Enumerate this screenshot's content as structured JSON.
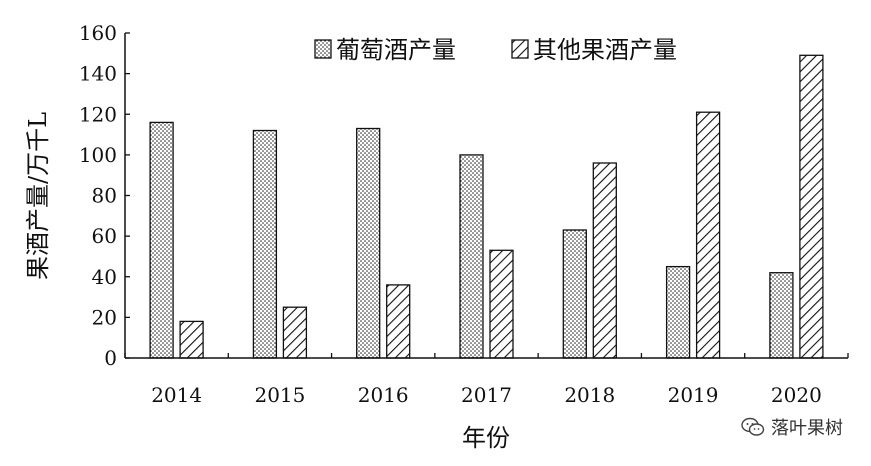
{
  "chart_data": {
    "type": "bar",
    "categories": [
      "2014",
      "2015",
      "2016",
      "2017",
      "2018",
      "2019",
      "2020"
    ],
    "series": [
      {
        "name": "葡萄酒产量",
        "pattern": "dots",
        "values": [
          116,
          112,
          113,
          100,
          63,
          45,
          42
        ]
      },
      {
        "name": "其他果酒产量",
        "pattern": "diagonal-hatch",
        "values": [
          18,
          25,
          36,
          53,
          96,
          121,
          149
        ]
      }
    ],
    "title": "",
    "xlabel": "年份",
    "ylabel": "果酒产量/万千L",
    "ylim": [
      0,
      160
    ],
    "yticks": [
      0,
      20,
      40,
      60,
      80,
      100,
      120,
      140,
      160
    ],
    "grid": false,
    "legend_position": "top-center",
    "colors": {
      "bar_outline": "#111111",
      "fill_background": "#ffffff",
      "pattern_ink": "#111111"
    }
  },
  "watermark": {
    "text": "落叶果树",
    "icon": "wechat-icon"
  }
}
